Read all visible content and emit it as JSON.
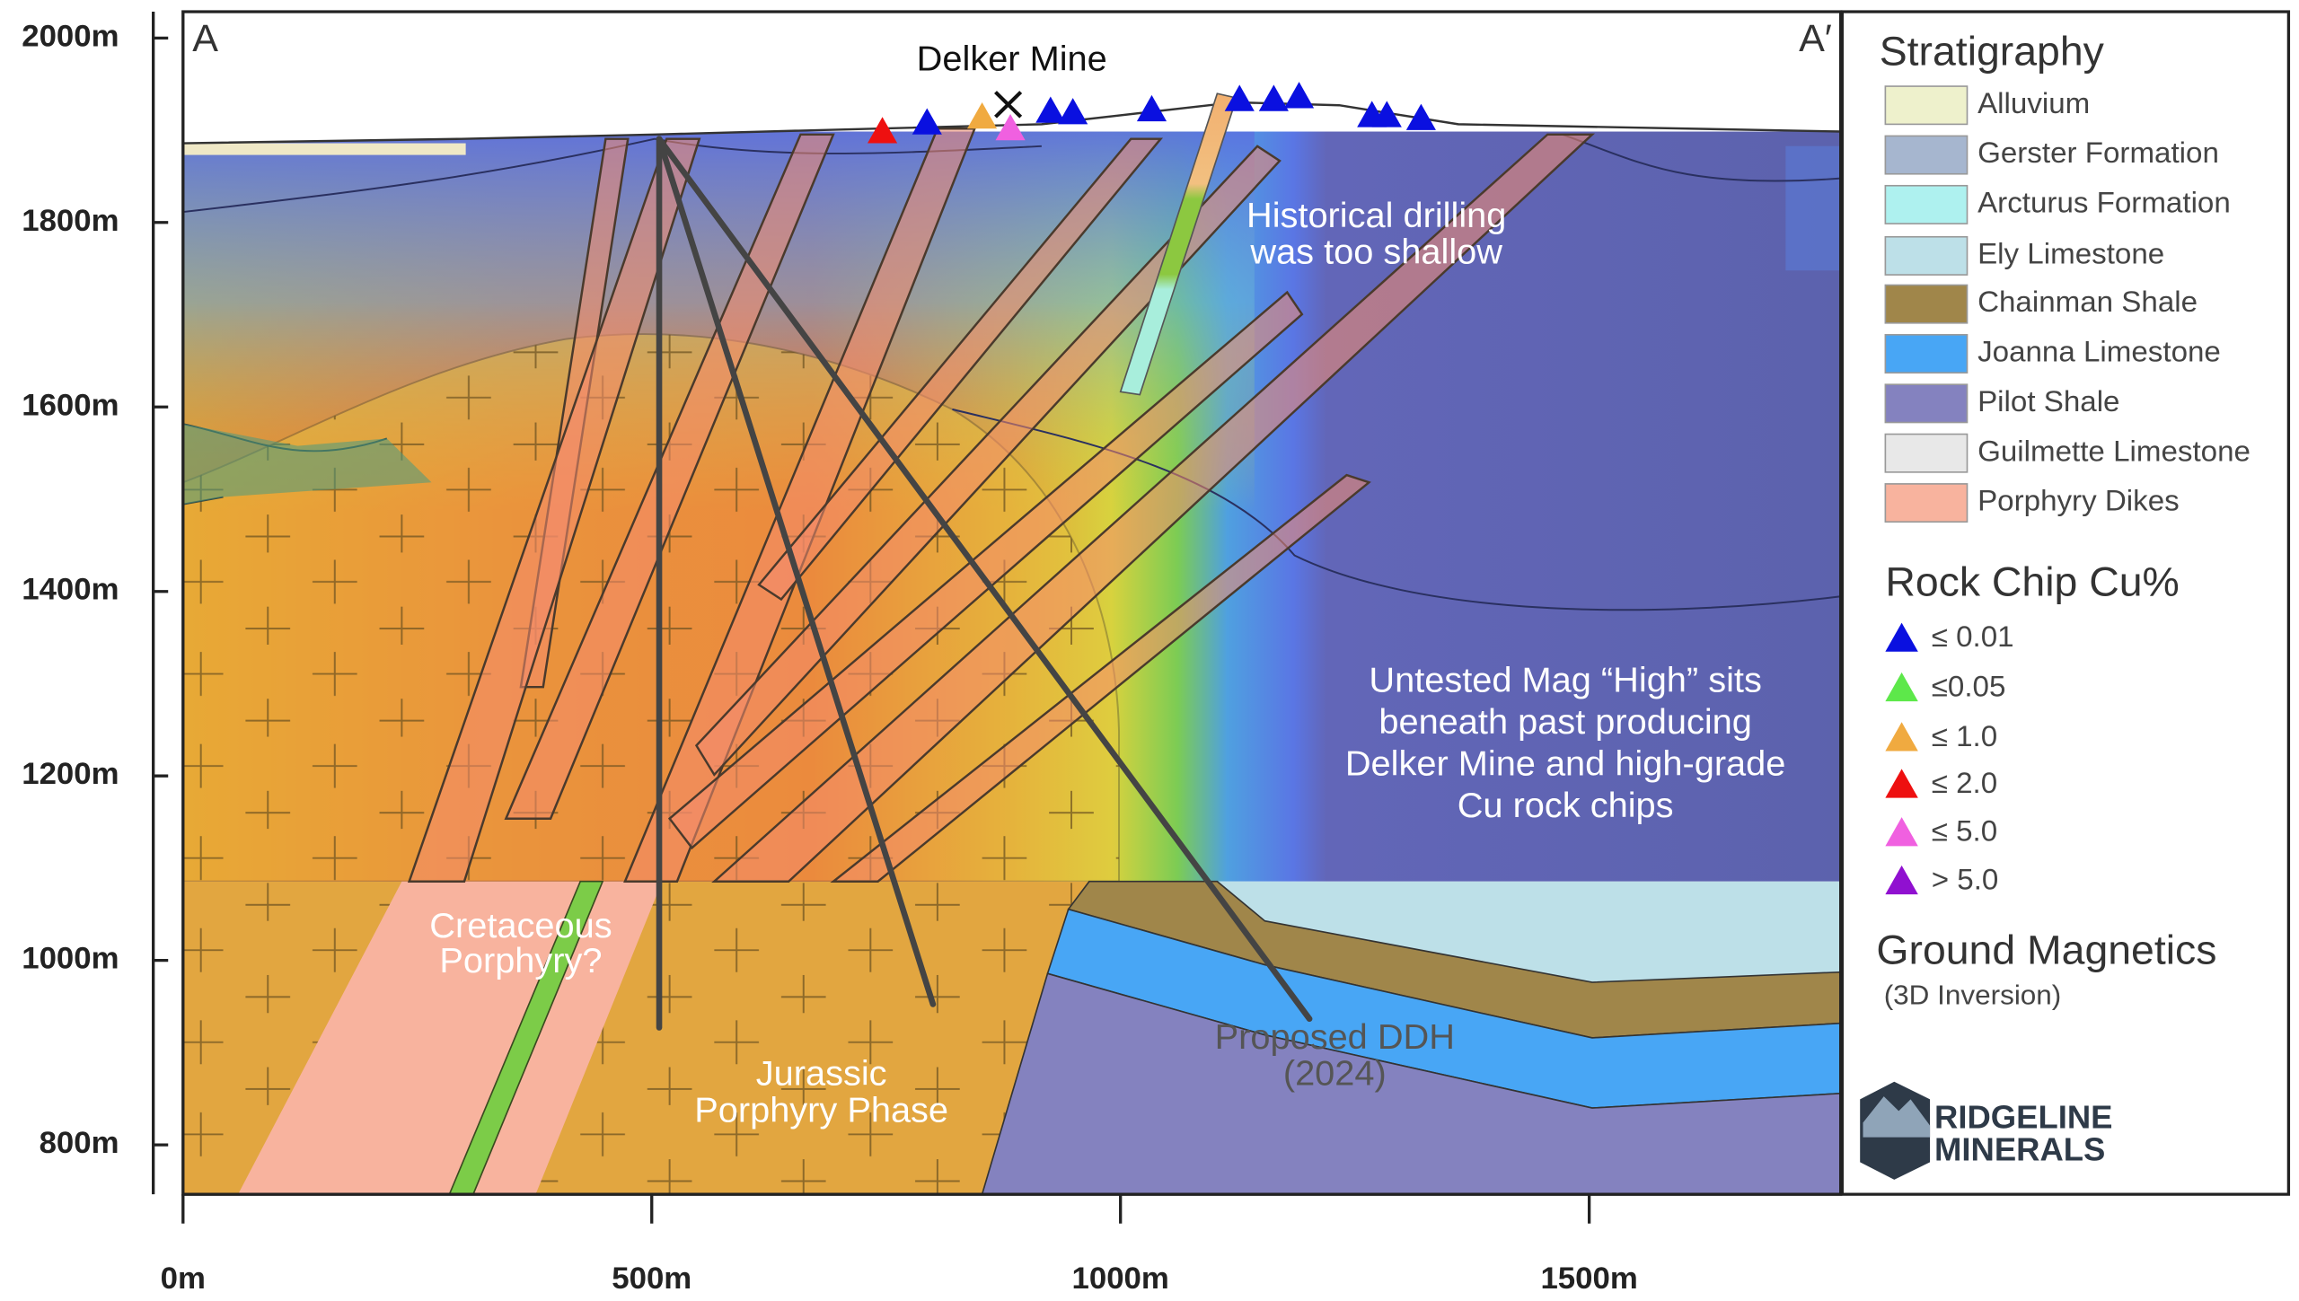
{
  "section": {
    "start_label": "A",
    "end_label": "A′"
  },
  "y_axis": {
    "ticks": [
      "2000m",
      "1800m",
      "1600m",
      "1400m",
      "1200m",
      "1000m",
      "800m"
    ]
  },
  "x_axis": {
    "ticks": [
      "0m",
      "500m",
      "1000m",
      "1500m"
    ]
  },
  "annotations": {
    "mine": "Delker Mine",
    "historical": [
      "Historical drilling",
      "was too shallow"
    ],
    "untested": [
      "Untested Mag “High” sits",
      "beneath past producing",
      "Delker Mine and high-grade",
      "Cu rock chips"
    ],
    "cretaceous": [
      "Cretaceous",
      "Porphyry?"
    ],
    "jurassic": [
      "Jurassic",
      "Porphyry Phase"
    ],
    "proposed": [
      "Proposed DDH",
      "(2024)"
    ]
  },
  "legend": {
    "stratigraphy": {
      "title": "Stratigraphy",
      "items": [
        {
          "label": "Alluvium",
          "color": "#eef1cc"
        },
        {
          "label": "Gerster Formation",
          "color": "#a6b6cf"
        },
        {
          "label": "Arcturus Formation",
          "color": "#aef1ef"
        },
        {
          "label": "Ely Limestone",
          "color": "#bde0e8"
        },
        {
          "label": "Chainman Shale",
          "color": "#a0864a"
        },
        {
          "label": "Joanna Limestone",
          "color": "#48a6f5"
        },
        {
          "label": "Pilot Shale",
          "color": "#8482bf"
        },
        {
          "label": "Guilmette Limestone",
          "color": "#e8e8e8"
        },
        {
          "label": "Porphyry Dikes",
          "color": "#f8b39e"
        }
      ]
    },
    "rock_chip": {
      "title": "Rock Chip Cu%",
      "items": [
        {
          "label": "≤ 0.01",
          "color": "#0a10e0"
        },
        {
          "label": "≤0.05",
          "color": "#5de84a"
        },
        {
          "label": "≤ 1.0",
          "color": "#f0aa40"
        },
        {
          "label": "≤ 2.0",
          "color": "#ee1010"
        },
        {
          "label": "≤ 5.0",
          "color": "#f060e0"
        },
        {
          "label": "> 5.0",
          "color": "#9010d0"
        }
      ]
    },
    "ground_magnetics": {
      "title": "Ground Magnetics",
      "subtitle": "(3D Inversion)"
    }
  },
  "logo": {
    "lines": [
      "RIDGELINE",
      "MINERALS"
    ]
  }
}
